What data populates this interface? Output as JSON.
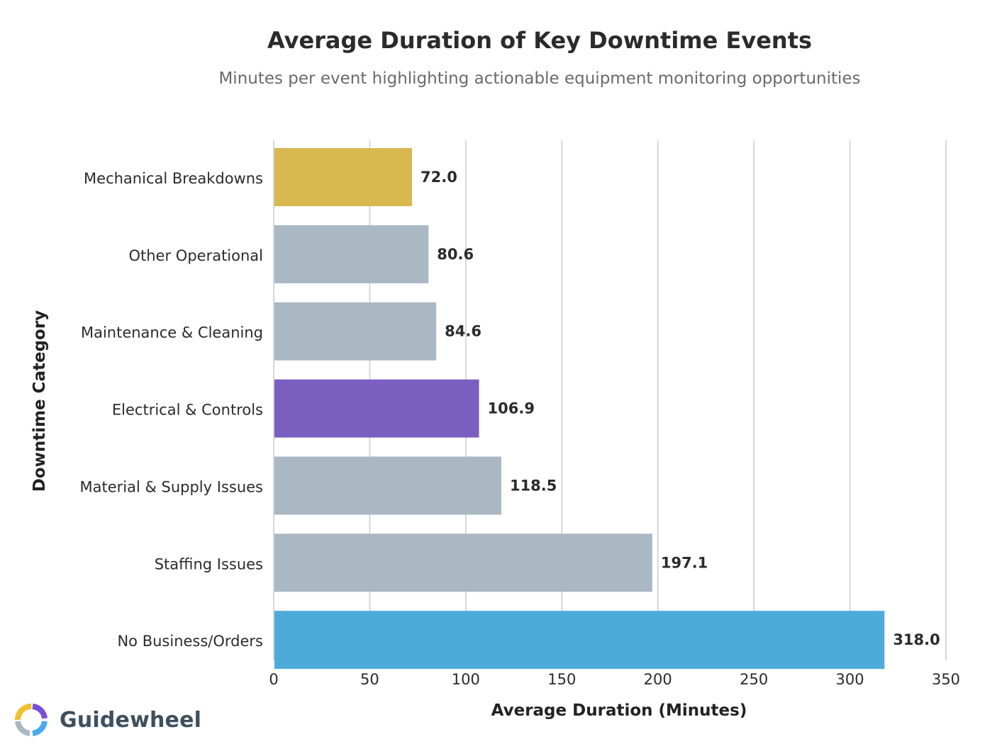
{
  "chart_data": {
    "type": "bar",
    "orientation": "horizontal",
    "title": "Average Duration of Key Downtime Events",
    "subtitle": "Minutes per event highlighting actionable equipment monitoring opportunities",
    "xlabel": "Average Duration (Minutes)",
    "ylabel": "Downtime Category",
    "xlim": [
      0,
      350
    ],
    "xticks": [
      "0",
      "50",
      "100",
      "150",
      "200",
      "250",
      "300",
      "350"
    ],
    "grid": "vertical",
    "legend": "none",
    "categories": [
      "Mechanical Breakdowns",
      "Other Operational",
      "Maintenance & Cleaning",
      "Electrical & Controls",
      "Material & Supply Issues",
      "Staffing Issues",
      "No Business/Orders"
    ],
    "values": [
      72.0,
      80.6,
      84.6,
      106.9,
      118.5,
      197.1,
      318.0
    ],
    "value_labels": [
      "72.0",
      "80.6",
      "84.6",
      "106.9",
      "118.5",
      "197.1",
      "318.0"
    ],
    "colors": [
      "#d9b84f",
      "#aab8c3",
      "#aab8c3",
      "#7a5fc0",
      "#aab8c3",
      "#aab8c3",
      "#4dabd9"
    ]
  },
  "brand": {
    "name": "Guidewheel",
    "logo_colors": [
      "#f0c030",
      "#7a4fd6",
      "#4aaaf0",
      "#a9b9c4"
    ]
  }
}
